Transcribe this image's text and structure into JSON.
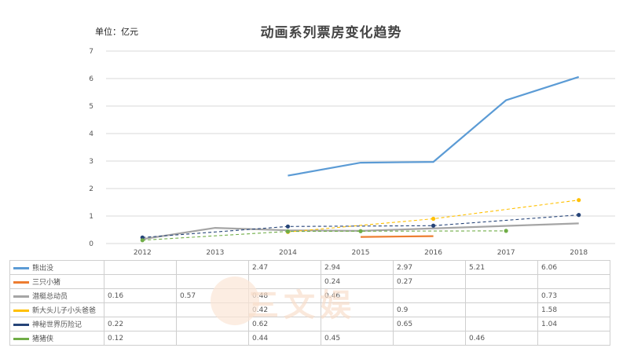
{
  "chart_data": {
    "type": "line",
    "title": "动画系列票房变化趋势",
    "unit_label": "单位：亿元",
    "categories": [
      "2012",
      "2013",
      "2014",
      "2015",
      "2016",
      "2017",
      "2018"
    ],
    "ylim": [
      0,
      7
    ],
    "y_ticks": [
      "0",
      "1",
      "2",
      "3",
      "4",
      "5",
      "6",
      "7"
    ],
    "grid": true,
    "series": [
      {
        "name": "熊出没",
        "color": "#5b9bd5",
        "style": "solid",
        "markers": false,
        "values": [
          null,
          null,
          2.47,
          2.94,
          2.97,
          5.21,
          6.06
        ]
      },
      {
        "name": "三只小猪",
        "color": "#ed7d31",
        "style": "solid",
        "markers": false,
        "values": [
          null,
          null,
          null,
          0.24,
          0.27,
          null,
          null
        ]
      },
      {
        "name": "潜艇总动员",
        "color": "#a5a5a5",
        "style": "solid",
        "markers": false,
        "values": [
          0.16,
          0.57,
          0.48,
          0.46,
          null,
          null,
          0.73
        ]
      },
      {
        "name": "新大头儿子小头爸爸",
        "color": "#ffc000",
        "style": "dashed",
        "markers": true,
        "values": [
          null,
          null,
          0.42,
          null,
          0.9,
          null,
          1.58
        ]
      },
      {
        "name": "神秘世界历险记",
        "color": "#264478",
        "style": "dashed",
        "markers": true,
        "values": [
          0.22,
          null,
          0.62,
          null,
          0.65,
          null,
          1.04
        ]
      },
      {
        "name": "猪猪侠",
        "color": "#70ad47",
        "style": "dashed",
        "markers": true,
        "values": [
          0.12,
          null,
          0.44,
          0.45,
          null,
          0.46,
          null
        ]
      }
    ],
    "table_rows": [
      [
        "",
        "",
        "2.47",
        "2.94",
        "2.97",
        "5.21",
        "6.06"
      ],
      [
        "",
        "",
        "",
        "0.24",
        "0.27",
        "",
        ""
      ],
      [
        "0.16",
        "0.57",
        "0.48",
        "0.46",
        "",
        "",
        "0.73"
      ],
      [
        "",
        "",
        "0.42",
        "",
        "0.9",
        "",
        "1.58"
      ],
      [
        "0.22",
        "",
        "0.62",
        "",
        "0.65",
        "",
        "1.04"
      ],
      [
        "0.12",
        "",
        "0.44",
        "0.45",
        "",
        "0.46",
        ""
      ]
    ]
  },
  "watermark": "三文娱"
}
